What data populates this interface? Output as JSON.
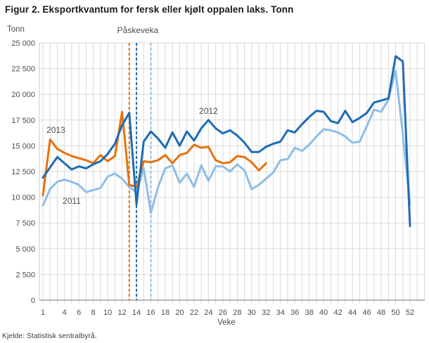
{
  "title": "Figur 2. Eksportkvantum for fersk eller kjølt oppalen laks. Tonn",
  "source": "Kjelde: Statistisk sentralbyrå.",
  "chart_data": {
    "type": "line",
    "title": "Figur 2. Eksportkvantum for fersk eller kjølt oppalen laks. Tonn",
    "ylabel": "Tonn",
    "xlabel": "Veke",
    "ylim": [
      0,
      25000
    ],
    "ytick_step": 2500,
    "yticks": [
      {
        "value": 25000,
        "label": "25 000"
      },
      {
        "value": 22500,
        "label": "22 500"
      },
      {
        "value": 20000,
        "label": "20 000"
      },
      {
        "value": 17500,
        "label": "17 500"
      },
      {
        "value": 15000,
        "label": "15 000"
      },
      {
        "value": 12500,
        "label": "12 500"
      },
      {
        "value": 10000,
        "label": "10 000"
      },
      {
        "value": 7500,
        "label": "7 500"
      },
      {
        "value": 5000,
        "label": "5 000"
      },
      {
        "value": 2500,
        "label": "2 500"
      },
      {
        "value": 0,
        "label": "0"
      }
    ],
    "xticks": [
      1,
      4,
      6,
      8,
      10,
      12,
      14,
      16,
      18,
      20,
      22,
      24,
      26,
      28,
      30,
      32,
      34,
      36,
      38,
      40,
      42,
      44,
      46,
      48,
      50,
      52
    ],
    "xlim_weeks": [
      1,
      52
    ],
    "grid": true,
    "legend_position": "inline-labels",
    "annotation": {
      "label": "Påskeveka",
      "lines": [
        {
          "year": "2013",
          "week": 13,
          "color": "#e8720c"
        },
        {
          "year": "2012",
          "week": 14,
          "color": "#1f6cb4"
        },
        {
          "year": "2011",
          "week": 16,
          "color": "#8fbde6"
        }
      ]
    },
    "series": [
      {
        "name": "2011",
        "color": "#8fbde6",
        "line_width": 3,
        "start_week": 1,
        "label_anchor": {
          "week": 5.0,
          "value": 9600
        },
        "values": [
          9200,
          10800,
          11500,
          11700,
          11500,
          11200,
          10500,
          10700,
          10900,
          12000,
          12300,
          11800,
          11000,
          10500,
          12800,
          8500,
          11000,
          12800,
          13100,
          11400,
          12300,
          11000,
          13100,
          11600,
          13000,
          13000,
          12500,
          13200,
          12600,
          10800,
          11200,
          11800,
          12400,
          13600,
          13700,
          14800,
          14500,
          15100,
          15900,
          16600,
          16500,
          16300,
          15900,
          15300,
          15400,
          16900,
          18500,
          18300,
          19500,
          22300,
          16100,
          9300
        ]
      },
      {
        "name": "2013",
        "color": "#e8720c",
        "line_width": 3,
        "start_week": 1,
        "label_anchor": {
          "week": 2.8,
          "value": 16500
        },
        "values": [
          10200,
          15600,
          14700,
          14300,
          14000,
          13800,
          13600,
          13300,
          14100,
          13500,
          14000,
          18300,
          11200,
          11000,
          13500,
          13400,
          13600,
          14100,
          13300,
          14100,
          14300,
          15100,
          14800,
          14900,
          13600,
          13300,
          13400,
          14000,
          13900,
          13400,
          12600,
          13300
        ]
      },
      {
        "name": "2012",
        "color": "#1f6cb4",
        "line_width": 3,
        "start_week": 1,
        "label_anchor": {
          "week": 24.0,
          "value": 18400
        },
        "values": [
          11900,
          12900,
          13900,
          13300,
          12700,
          13000,
          12800,
          13200,
          13500,
          14200,
          15200,
          17000,
          18200,
          9300,
          15400,
          16400,
          15700,
          14800,
          16300,
          15000,
          16400,
          15500,
          16700,
          17500,
          16700,
          16200,
          16500,
          16000,
          15300,
          14400,
          14400,
          14900,
          15200,
          15400,
          16500,
          16300,
          17100,
          17800,
          18400,
          18300,
          17400,
          17200,
          18400,
          17300,
          17700,
          18200,
          19200,
          19400,
          19600,
          23700,
          23200,
          7200
        ]
      }
    ],
    "style": {
      "grid_color": "#d9d9d9",
      "axis_color": "#8c8c8c",
      "yaxis_color": "#c9c9c9",
      "tick_label_color": "#4d4d4d"
    }
  }
}
